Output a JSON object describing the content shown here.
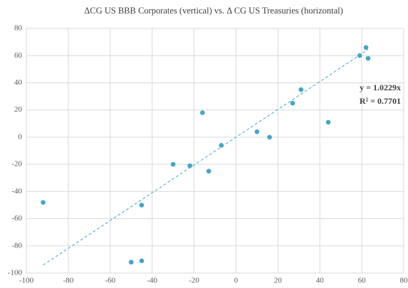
{
  "chart_data": {
    "type": "scatter",
    "title": "ΔCG US BBB Corporates (vertical) vs. Δ CG US Treasuries (horizontal)",
    "x": [
      -92,
      -50,
      -45,
      -45,
      -30,
      -22,
      -16,
      -13,
      -7,
      10,
      16,
      27,
      31,
      44,
      59,
      62,
      63
    ],
    "values": [
      -48,
      -92,
      -91,
      -50,
      -20,
      -21,
      18,
      -25,
      -6,
      4,
      0,
      25,
      35,
      11,
      60,
      66,
      58
    ],
    "color": "#41a6c8",
    "xlim": [
      -100,
      80
    ],
    "xticks": [
      -100,
      -80,
      -60,
      -40,
      -20,
      0,
      20,
      40,
      60,
      80
    ],
    "ylim": [
      -100,
      80
    ],
    "yticks": [
      -100,
      -80,
      -60,
      -40,
      -20,
      0,
      20,
      40,
      60,
      80
    ],
    "grid": true,
    "trendline": {
      "slope": 1.0229,
      "equation": "y = 1.0229x",
      "r2": "R² = 0.7701",
      "color": "#41a6c8"
    }
  }
}
